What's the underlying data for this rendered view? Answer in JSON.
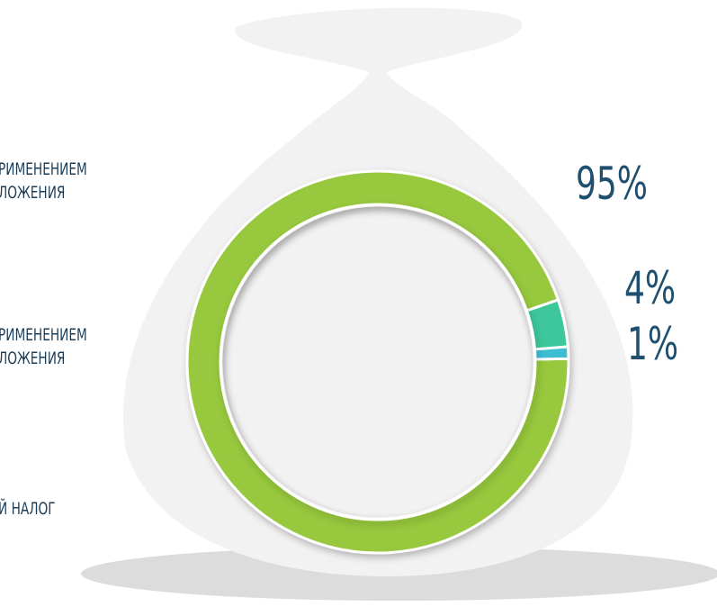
{
  "chart_data": {
    "type": "pie",
    "categories": [
      [
        "РИМЕНЕНИЕМ",
        "ЛОЖЕНИЯ"
      ],
      [
        "РИМЕНЕНИЕМ",
        "ЛОЖЕНИЯ"
      ],
      [
        "Й НАЛОГ"
      ]
    ],
    "values": [
      95,
      4,
      1
    ],
    "value_labels": [
      "95%",
      "4%",
      "1%"
    ],
    "colors": [
      "#97c83e",
      "#3ec79b",
      "#3cbdd3"
    ]
  }
}
